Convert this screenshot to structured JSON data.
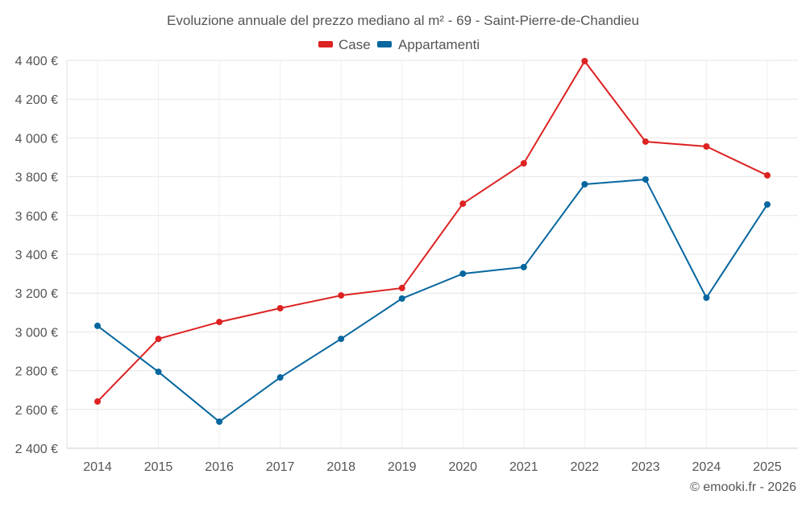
{
  "chart_data": {
    "type": "line",
    "title": "Evoluzione annuale del prezzo mediano al m² - 69 - Saint-Pierre-de-Chandieu",
    "categories": [
      "2014",
      "2015",
      "2016",
      "2017",
      "2018",
      "2019",
      "2020",
      "2021",
      "2022",
      "2023",
      "2024",
      "2025"
    ],
    "series": [
      {
        "name": "Case",
        "color": "#dd2222",
        "values": [
          2641,
          2964,
          3051,
          3122,
          3188,
          3226,
          3661,
          3869,
          4396,
          3981,
          3956,
          3807
        ]
      },
      {
        "name": "Appartamenti",
        "color": "#06669f",
        "values": [
          3031,
          2794,
          2537,
          2765,
          2964,
          3172,
          3300,
          3334,
          3761,
          3786,
          3176,
          3657
        ]
      }
    ],
    "yticks": [
      2400,
      2600,
      2800,
      3000,
      3200,
      3400,
      3600,
      3800,
      4000,
      4200,
      4400
    ],
    "ytick_labels": [
      "2 400 €",
      "2 600 €",
      "2 800 €",
      "3 000 €",
      "3 200 €",
      "3 400 €",
      "3 600 €",
      "3 800 €",
      "4 000 €",
      "4 200 €",
      "4 400 €"
    ],
    "ylim": [
      2400,
      4400
    ],
    "xlabel": "",
    "ylabel": "",
    "grid": true,
    "legend": "top-center"
  },
  "credit": "© emooki.fr - 2026"
}
